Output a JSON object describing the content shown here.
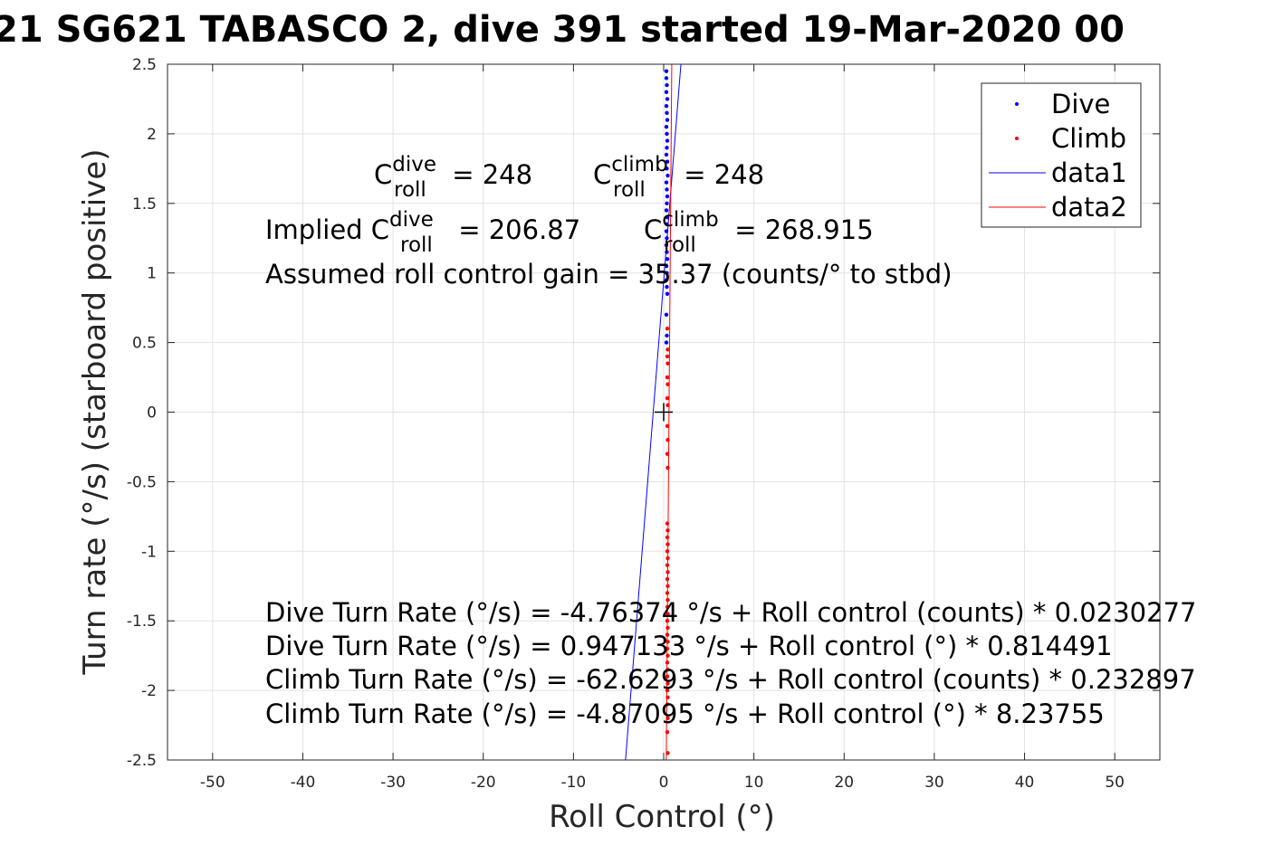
{
  "chart_data": {
    "type": "scatter",
    "title": "21 SG621 TABASCO 2, dive 391 started 19-Mar-2020 00",
    "xlabel": "Roll Control (°)",
    "ylabel": "Turn rate (°/s) (starboard positive)",
    "xlim": [
      -55,
      55
    ],
    "ylim": [
      -2.5,
      2.5
    ],
    "xticks": [
      "-50",
      "-40",
      "-30",
      "-20",
      "-10",
      "0",
      "10",
      "20",
      "30",
      "40",
      "50"
    ],
    "yticks": [
      "2.5",
      "2",
      "1.5",
      "1",
      "0.5",
      "0",
      "-0.5",
      "-1",
      "-1.5",
      "-2",
      "-2.5"
    ],
    "grid": true,
    "legend_position": "top-right",
    "legend": [
      "Dive",
      "Climb",
      "data1",
      "data2"
    ],
    "series": [
      {
        "name": "Dive",
        "kind": "points",
        "color": "#0000ff",
        "x": [
          0.3,
          0.3,
          0.35,
          0.3,
          0.4,
          0.3,
          0.35,
          0.4,
          0.3,
          0.35,
          0.4,
          0.35,
          0.3,
          0.4,
          0.35,
          0.45,
          0.3,
          0.35,
          0.4,
          0.35,
          0.3,
          0.4,
          0.35,
          0.3,
          0.35,
          0.3,
          0.35,
          0.4,
          0.3,
          0.35,
          0.3,
          0.35,
          0.4,
          0.3,
          0.35,
          0.3
        ],
        "y": [
          2.45,
          2.4,
          2.35,
          2.3,
          2.25,
          2.2,
          2.15,
          2.1,
          2.05,
          2.0,
          1.95,
          1.9,
          1.85,
          1.8,
          1.75,
          1.7,
          1.65,
          1.6,
          1.55,
          1.5,
          1.45,
          1.4,
          1.35,
          1.3,
          1.25,
          1.2,
          1.15,
          1.1,
          1.05,
          1.0,
          0.95,
          0.9,
          0.85,
          0.7,
          0.55,
          0.5
        ]
      },
      {
        "name": "Climb",
        "kind": "points",
        "color": "#ff0000",
        "x": [
          0.4,
          0.45,
          0.4,
          0.45,
          0.4,
          0.45,
          0.4,
          0.45,
          0.4,
          0.45,
          0.4,
          0.45,
          0.4,
          0.45,
          0.4,
          0.45,
          0.4,
          0.45,
          0.4,
          0.45,
          0.4,
          0.45,
          0.4,
          0.45,
          0.4,
          0.45,
          0.4,
          0.45,
          0.4,
          0.45,
          0.4,
          0.45,
          0.4,
          0.45,
          0.4,
          0.45,
          0.4,
          0.45,
          0.4,
          0.45,
          0.4,
          0.45
        ],
        "y": [
          0.6,
          0.45,
          0.4,
          0.35,
          0.25,
          0.2,
          0.1,
          0.05,
          -0.1,
          -0.2,
          -0.3,
          -0.4,
          -0.8,
          -0.85,
          -0.9,
          -0.95,
          -1.0,
          -1.05,
          -1.1,
          -1.15,
          -1.2,
          -1.25,
          -1.3,
          -1.35,
          -1.4,
          -1.45,
          -1.5,
          -1.55,
          -1.6,
          -1.65,
          -1.7,
          -1.75,
          -1.8,
          -1.85,
          -1.9,
          -1.95,
          -2.0,
          -2.05,
          -2.1,
          -2.2,
          -2.3,
          -2.45
        ]
      },
      {
        "name": "data1",
        "kind": "line",
        "color": "#0000ff",
        "x": [
          -4.23,
          1.91
        ],
        "y": [
          -2.5,
          2.5
        ]
      },
      {
        "name": "data2",
        "kind": "line",
        "color": "#ff0000",
        "x": [
          0.288,
          0.895
        ],
        "y": [
          -2.5,
          2.5
        ]
      }
    ],
    "marker": {
      "x": 0,
      "y": 0,
      "symbol": "+"
    },
    "annotations": {
      "c_dive_line": {
        "base": "C",
        "sub": "roll",
        "sup": "dive",
        "value": " = 248"
      },
      "c_climb_line": {
        "base": "C",
        "sub": "roll",
        "sup": "climb",
        "value": " = 248"
      },
      "implied_dive": {
        "prefix": "Implied ",
        "base": "C",
        "sub": "roll",
        "sup": "dive",
        "value": " = 206.87"
      },
      "implied_climb": {
        "base": "C",
        "sub": "roll",
        "sup": "climb",
        "value": " = 268.915"
      },
      "gain": "Assumed roll control gain = 35.37 (counts/° to stbd)",
      "equations": [
        "Dive Turn Rate (°/s) = -4.76374 °/s + Roll control (counts) * 0.0230277",
        "Dive Turn Rate (°/s) = 0.947133 °/s + Roll control (°) * 0.814491",
        "Climb Turn Rate (°/s) = -62.6293 °/s + Roll control (counts) * 0.232897",
        "Climb Turn Rate (°/s) = -4.87095 °/s + Roll control (°) * 8.23755"
      ]
    }
  }
}
